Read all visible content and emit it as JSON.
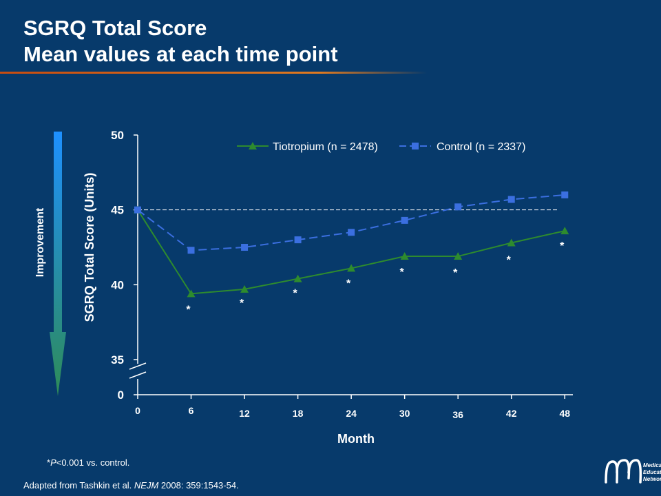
{
  "slide": {
    "title_line1": "SGRQ Total Score",
    "title_line2": "Mean values at each time point",
    "footnote_prefix": "*",
    "footnote_p": "P",
    "footnote_rest": "<0.001 vs. control.",
    "source_prefix": "Adapted from Tashkin et al. ",
    "source_journal": "NEJM",
    "source_suffix": " 2008: 359:1543-54.",
    "logo_text": [
      "Medical",
      "Education",
      "Network"
    ],
    "improvement_label": "Improvement",
    "colors": {
      "background": "#073a6b",
      "tiotropium": "#2e8b2e",
      "control": "#3b6fe0",
      "arrow_top": "#1e90ff",
      "arrow_bottom": "#2e8b57"
    }
  },
  "chart_data": {
    "type": "line",
    "x": [
      0,
      6,
      12,
      18,
      24,
      30,
      36,
      42,
      48
    ],
    "xticklabels": [
      "0",
      "6",
      "12",
      "18",
      "24",
      "30",
      "36",
      "42",
      "48"
    ],
    "xlabel": "Month",
    "ylabel": "SGRQ Total Score (Units)",
    "yticks": [
      0,
      35,
      40,
      45,
      50
    ],
    "ylim": [
      35,
      50
    ],
    "axis_break": true,
    "reference_line": 45.0,
    "legend_position": "top",
    "series": [
      {
        "name": "Tiotropium (n = 2478)",
        "marker": "triangle",
        "style": "solid",
        "values": [
          45.0,
          39.4,
          39.7,
          40.4,
          41.1,
          41.9,
          41.9,
          42.8,
          43.6
        ]
      },
      {
        "name": "Control (n = 2337)",
        "marker": "square",
        "style": "dashed",
        "values": [
          45.0,
          42.3,
          42.5,
          43.0,
          43.5,
          44.3,
          45.2,
          45.7,
          46.0
        ]
      }
    ],
    "significance_marker": "*",
    "significant_at": [
      6,
      12,
      18,
      24,
      30,
      36,
      42,
      48
    ]
  }
}
